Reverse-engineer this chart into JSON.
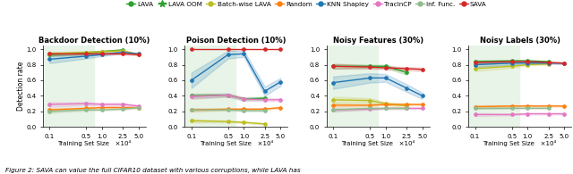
{
  "legend_entries": [
    "LAVA",
    "LAVA OOM",
    "Batch-wise LAVA",
    "Random",
    "KNN Shapley",
    "TracInCP",
    "Inf. Func.",
    "SAVA"
  ],
  "legend_colors": [
    "#2ca02c",
    "#2ca02c",
    "#bcbd22",
    "#ff7f0e",
    "#1f77b4",
    "#e377c2",
    "#8fbc8f",
    "#d62728"
  ],
  "x_ticks": [
    0.1,
    0.5,
    1.0,
    2.5,
    5.0
  ],
  "x_label": "Training Set Size",
  "y_label": "Detection rate",
  "subplots": [
    {
      "title": "Backdoor Detection (10%)",
      "ylim": [
        0.0,
        1.05
      ],
      "yticks": [
        0.0,
        0.2,
        0.4,
        0.6,
        0.8,
        1.0
      ],
      "highlight_xrange": [
        0.07,
        0.7
      ],
      "highlight_color": "#e8f4e8",
      "series": [
        {
          "label": "LAVA",
          "color": "#2ca02c",
          "marker": "o",
          "ls": "-",
          "values": [
            0.93,
            0.95,
            0.97,
            0.99,
            null
          ],
          "std": [
            0.02,
            0.02,
            0.01,
            0.01,
            0
          ]
        },
        {
          "label": "LAVA OOM",
          "color": "#2ca02c",
          "marker": "*",
          "ls": "--",
          "values": [
            null,
            null,
            null,
            null,
            null
          ],
          "std": [
            0,
            0,
            0,
            0,
            0
          ]
        },
        {
          "label": "Batch-wise LAVA",
          "color": "#bcbd22",
          "marker": "o",
          "ls": "-",
          "values": [
            0.94,
            0.96,
            0.97,
            0.98,
            0.93
          ],
          "std": [
            0.02,
            0.01,
            0.01,
            0.01,
            0.01
          ]
        },
        {
          "label": "Random",
          "color": "#ff7f0e",
          "marker": "o",
          "ls": "-",
          "values": [
            0.22,
            0.24,
            0.25,
            0.25,
            0.25
          ],
          "std": [
            0.02,
            0.01,
            0.01,
            0.01,
            0.01
          ]
        },
        {
          "label": "KNN Shapley",
          "color": "#1f77b4",
          "marker": "o",
          "ls": "-",
          "values": [
            0.87,
            0.91,
            0.93,
            0.96,
            0.94
          ],
          "std": [
            0.05,
            0.03,
            0.02,
            0.01,
            0.01
          ]
        },
        {
          "label": "TracInCP",
          "color": "#e377c2",
          "marker": "o",
          "ls": "-",
          "values": [
            0.29,
            0.3,
            0.29,
            0.29,
            0.27
          ],
          "std": [
            0.03,
            0.02,
            0.02,
            0.02,
            0.01
          ]
        },
        {
          "label": "Inf. Func.",
          "color": "#8fbc8f",
          "marker": "o",
          "ls": "-",
          "values": [
            0.2,
            0.22,
            0.22,
            0.23,
            0.25
          ],
          "std": [
            0.02,
            0.01,
            0.01,
            0.01,
            0.01
          ]
        },
        {
          "label": "SAVA",
          "color": "#d62728",
          "marker": "o",
          "ls": "-",
          "values": [
            0.94,
            0.94,
            0.94,
            0.94,
            0.93
          ],
          "std": [
            0.02,
            0.01,
            0.01,
            0.01,
            0.01
          ]
        }
      ]
    },
    {
      "title": "Poison Detection (10%)",
      "ylim": [
        0.0,
        1.05
      ],
      "yticks": [
        0.0,
        0.2,
        0.4,
        0.6,
        0.8,
        1.0
      ],
      "highlight_xrange": [
        0.07,
        0.7
      ],
      "highlight_color": "#e8f4e8",
      "series": [
        {
          "label": "LAVA",
          "color": "#2ca02c",
          "marker": "o",
          "ls": "-",
          "values": [
            0.4,
            0.41,
            0.36,
            0.37,
            null
          ],
          "std": [
            0.03,
            0.02,
            0.02,
            0.02,
            0
          ]
        },
        {
          "label": "LAVA OOM",
          "color": "#2ca02c",
          "marker": "*",
          "ls": "--",
          "values": [
            null,
            null,
            null,
            null,
            null
          ],
          "std": [
            0,
            0,
            0,
            0,
            0
          ]
        },
        {
          "label": "Batch-wise LAVA",
          "color": "#bcbd22",
          "marker": "o",
          "ls": "-",
          "values": [
            0.08,
            0.07,
            0.06,
            0.04,
            null
          ],
          "std": [
            0.02,
            0.01,
            0.01,
            0.01,
            0
          ]
        },
        {
          "label": "Random",
          "color": "#ff7f0e",
          "marker": "o",
          "ls": "-",
          "values": [
            0.22,
            0.23,
            0.23,
            0.23,
            0.25
          ],
          "std": [
            0.02,
            0.01,
            0.01,
            0.01,
            0.01
          ]
        },
        {
          "label": "KNN Shapley",
          "color": "#1f77b4",
          "marker": "o",
          "ls": "-",
          "values": [
            0.6,
            0.93,
            0.94,
            0.46,
            0.58
          ],
          "std": [
            0.1,
            0.05,
            0.04,
            0.06,
            0.05
          ]
        },
        {
          "label": "TracInCP",
          "color": "#e377c2",
          "marker": "o",
          "ls": "-",
          "values": [
            0.39,
            0.41,
            0.36,
            0.35,
            0.35
          ],
          "std": [
            0.03,
            0.02,
            0.02,
            0.02,
            0.02
          ]
        },
        {
          "label": "Inf. Func.",
          "color": "#8fbc8f",
          "marker": "o",
          "ls": "-",
          "values": [
            0.22,
            0.22,
            0.21,
            0.21,
            null
          ],
          "std": [
            0.02,
            0.01,
            0.01,
            0.01,
            0
          ]
        },
        {
          "label": "SAVA",
          "color": "#d62728",
          "marker": "o",
          "ls": "-",
          "values": [
            1.0,
            1.0,
            1.0,
            1.0,
            1.0
          ],
          "std": [
            0.0,
            0.0,
            0.0,
            0.0,
            0.0
          ]
        }
      ]
    },
    {
      "title": "Noisy Features (30%)",
      "ylim": [
        0.0,
        1.05
      ],
      "yticks": [
        0.0,
        0.2,
        0.4,
        0.6,
        0.8,
        1.0
      ],
      "highlight_xrange": [
        0.07,
        0.7
      ],
      "highlight_color": "#e8f4e8",
      "series": [
        {
          "label": "LAVA",
          "color": "#2ca02c",
          "marker": "o",
          "ls": "-",
          "values": [
            0.78,
            0.78,
            0.78,
            0.7,
            null
          ],
          "std": [
            0.03,
            0.02,
            0.02,
            0.03,
            0
          ]
        },
        {
          "label": "LAVA OOM",
          "color": "#2ca02c",
          "marker": "*",
          "ls": "--",
          "values": [
            null,
            null,
            null,
            null,
            null
          ],
          "std": [
            0,
            0,
            0,
            0,
            0
          ]
        },
        {
          "label": "Batch-wise LAVA",
          "color": "#bcbd22",
          "marker": "o",
          "ls": "-",
          "values": [
            0.35,
            0.34,
            0.3,
            0.27,
            null
          ],
          "std": [
            0.04,
            0.03,
            0.02,
            0.03,
            0
          ]
        },
        {
          "label": "Random",
          "color": "#ff7f0e",
          "marker": "o",
          "ls": "-",
          "values": [
            0.28,
            0.28,
            0.29,
            0.29,
            0.29
          ],
          "std": [
            0.02,
            0.01,
            0.01,
            0.01,
            0.01
          ]
        },
        {
          "label": "KNN Shapley",
          "color": "#1f77b4",
          "marker": "o",
          "ls": "-",
          "values": [
            0.57,
            0.63,
            0.63,
            0.5,
            0.4
          ],
          "std": [
            0.08,
            0.06,
            0.05,
            0.05,
            0.04
          ]
        },
        {
          "label": "TracInCP",
          "color": "#e377c2",
          "marker": "o",
          "ls": "-",
          "values": [
            0.22,
            0.23,
            0.24,
            0.24,
            0.24
          ],
          "std": [
            0.02,
            0.01,
            0.01,
            0.01,
            0.01
          ]
        },
        {
          "label": "Inf. Func.",
          "color": "#8fbc8f",
          "marker": "o",
          "ls": "-",
          "values": [
            0.22,
            0.24,
            0.24,
            0.24,
            null
          ],
          "std": [
            0.02,
            0.01,
            0.01,
            0.01,
            0
          ]
        },
        {
          "label": "SAVA",
          "color": "#d62728",
          "marker": "o",
          "ls": "-",
          "values": [
            0.78,
            0.77,
            0.76,
            0.75,
            0.74
          ],
          "std": [
            0.03,
            0.02,
            0.02,
            0.02,
            0.02
          ]
        }
      ]
    },
    {
      "title": "Noisy Labels (30%)",
      "ylim": [
        0.0,
        1.05
      ],
      "yticks": [
        0.0,
        0.2,
        0.4,
        0.6,
        0.8,
        1.0
      ],
      "highlight_xrange": [
        0.07,
        0.7
      ],
      "highlight_color": "#e8f4e8",
      "series": [
        {
          "label": "LAVA",
          "color": "#2ca02c",
          "marker": "o",
          "ls": "-",
          "values": [
            0.84,
            0.85,
            0.85,
            0.84,
            null
          ],
          "std": [
            0.02,
            0.01,
            0.01,
            0.01,
            0
          ]
        },
        {
          "label": "LAVA OOM",
          "color": "#2ca02c",
          "marker": "*",
          "ls": "--",
          "values": [
            null,
            null,
            null,
            null,
            null
          ],
          "std": [
            0,
            0,
            0,
            0,
            0
          ]
        },
        {
          "label": "Batch-wise LAVA",
          "color": "#bcbd22",
          "marker": "o",
          "ls": "-",
          "values": [
            0.75,
            0.78,
            0.8,
            0.81,
            null
          ],
          "std": [
            0.03,
            0.02,
            0.01,
            0.01,
            0
          ]
        },
        {
          "label": "Random",
          "color": "#ff7f0e",
          "marker": "o",
          "ls": "-",
          "values": [
            0.26,
            0.27,
            0.27,
            0.27,
            0.27
          ],
          "std": [
            0.02,
            0.01,
            0.01,
            0.01,
            0.01
          ]
        },
        {
          "label": "KNN Shapley",
          "color": "#1f77b4",
          "marker": "o",
          "ls": "-",
          "values": [
            0.8,
            0.82,
            0.82,
            0.82,
            0.82
          ],
          "std": [
            0.03,
            0.02,
            0.01,
            0.01,
            0.01
          ]
        },
        {
          "label": "TracInCP",
          "color": "#e377c2",
          "marker": "o",
          "ls": "-",
          "values": [
            0.16,
            0.16,
            0.17,
            0.17,
            0.17
          ],
          "std": [
            0.02,
            0.01,
            0.01,
            0.01,
            0.01
          ]
        },
        {
          "label": "Inf. Func.",
          "color": "#8fbc8f",
          "marker": "o",
          "ls": "-",
          "values": [
            0.25,
            0.25,
            0.25,
            0.25,
            null
          ],
          "std": [
            0.02,
            0.01,
            0.01,
            0.01,
            0
          ]
        },
        {
          "label": "SAVA",
          "color": "#d62728",
          "marker": "o",
          "ls": "-",
          "values": [
            0.83,
            0.84,
            0.84,
            0.83,
            0.82
          ],
          "std": [
            0.02,
            0.01,
            0.01,
            0.01,
            0.01
          ]
        }
      ]
    }
  ],
  "caption": "Figure 2: SAVA can value the full CIFAR10 dataset with various corruptions, while LAVA has"
}
